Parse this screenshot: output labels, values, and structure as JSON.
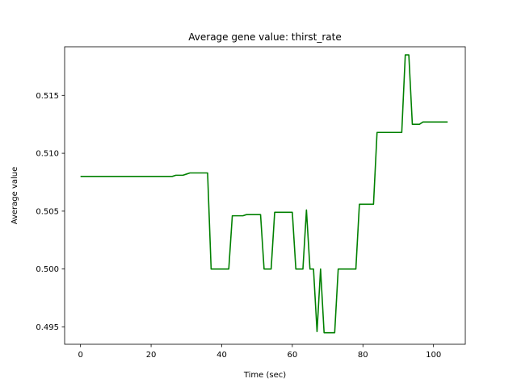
{
  "chart_data": {
    "type": "line",
    "title": "Average gene value: thirst_rate",
    "xlabel": "Time (sec)",
    "ylabel": "Average value",
    "xlim": [
      -4.5,
      109
    ],
    "ylim": [
      0.4935,
      0.5192
    ],
    "xticks": [
      0,
      20,
      40,
      60,
      80,
      100
    ],
    "xtick_labels": [
      "0",
      "20",
      "40",
      "60",
      "80",
      "100"
    ],
    "yticks": [
      0.495,
      0.5,
      0.505,
      0.51,
      0.515
    ],
    "ytick_labels": [
      "0.495",
      "0.500",
      "0.505",
      "0.510",
      "0.515"
    ],
    "grid": false,
    "line_color": "#008000",
    "series": [
      {
        "name": "",
        "x": [
          0,
          26,
          27,
          29,
          30,
          31,
          36,
          37,
          42,
          43,
          46,
          47,
          51,
          52,
          54,
          55,
          60,
          61,
          63,
          64,
          65,
          66,
          67,
          68,
          69,
          72,
          73,
          78,
          79,
          80,
          83,
          84,
          91,
          92,
          93,
          94,
          96,
          97,
          104
        ],
        "y": [
          0.508,
          0.508,
          0.5081,
          0.5081,
          0.5082,
          0.5083,
          0.5083,
          0.5,
          0.5,
          0.5046,
          0.5046,
          0.5047,
          0.5047,
          0.5,
          0.5,
          0.5049,
          0.5049,
          0.5,
          0.5,
          0.5051,
          0.5,
          0.5,
          0.4946,
          0.5,
          0.4945,
          0.4945,
          0.5,
          0.5,
          0.5056,
          0.5056,
          0.5056,
          0.5118,
          0.5118,
          0.5185,
          0.5185,
          0.5125,
          0.5125,
          0.5127,
          0.5127
        ]
      }
    ]
  }
}
